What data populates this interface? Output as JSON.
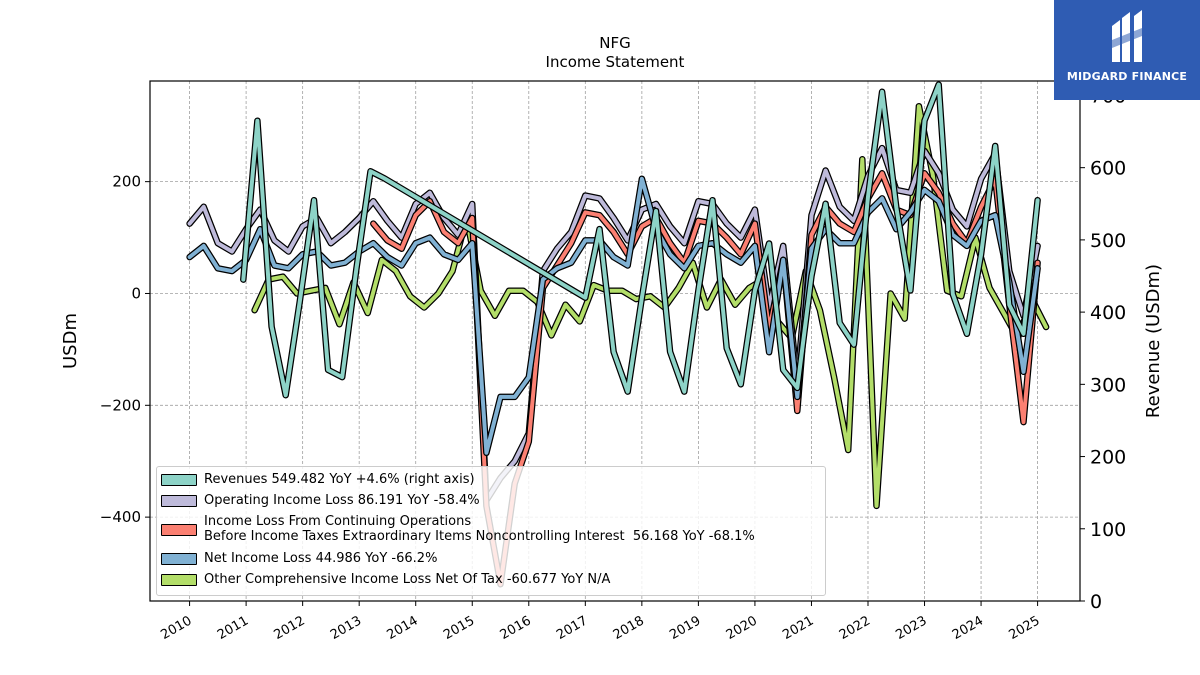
{
  "chart_data": {
    "type": "line",
    "title": "NFG",
    "subtitle": "Income Statement",
    "ylabel_left": "USDm",
    "ylabel_right": "Revenue (USDm)",
    "ylim_left": [
      -550,
      380
    ],
    "ylim_right": [
      0,
      720
    ],
    "yticks_left": [
      -400,
      -200,
      0,
      200
    ],
    "yticks_left_labels": [
      "−400",
      "−200",
      "0",
      "200"
    ],
    "yticks_right": [
      0,
      100,
      200,
      300,
      400,
      500,
      600,
      700
    ],
    "yticks_right_labels": [
      "0",
      "100",
      "200",
      "300",
      "400",
      "500",
      "600",
      "700"
    ],
    "xlim": [
      2009.3,
      2025.75
    ],
    "xticks": [
      "2010",
      "2011",
      "2012",
      "2013",
      "2014",
      "2015",
      "2016",
      "2017",
      "2018",
      "2019",
      "2020",
      "2021",
      "2022",
      "2023",
      "2024",
      "2025"
    ],
    "grid": true,
    "legend_position": "lower-left",
    "series": [
      {
        "name": "Revenues  549.482 YoY +4.6% (right axis)",
        "axis": "right",
        "color": "#8dd3c7",
        "points": [
          [
            2010.95,
            445
          ],
          [
            2011.2,
            665
          ],
          [
            2011.45,
            380
          ],
          [
            2011.7,
            285
          ],
          [
            2011.95,
            415
          ],
          [
            2012.2,
            555
          ],
          [
            2012.45,
            320
          ],
          [
            2012.7,
            310
          ],
          [
            2012.95,
            460
          ],
          [
            2013.2,
            595
          ],
          [
            2013.45,
            585
          ],
          [
            2017.0,
            420
          ],
          [
            2017.25,
            515
          ],
          [
            2017.5,
            345
          ],
          [
            2017.75,
            290
          ],
          [
            2018.0,
            420
          ],
          [
            2018.25,
            540
          ],
          [
            2018.5,
            345
          ],
          [
            2018.75,
            290
          ],
          [
            2019.0,
            430
          ],
          [
            2019.25,
            555
          ],
          [
            2019.5,
            350
          ],
          [
            2019.75,
            300
          ],
          [
            2020.0,
            430
          ],
          [
            2020.25,
            495
          ],
          [
            2020.5,
            320
          ],
          [
            2020.75,
            295
          ],
          [
            2021.0,
            450
          ],
          [
            2021.25,
            550
          ],
          [
            2021.5,
            385
          ],
          [
            2021.75,
            355
          ],
          [
            2022.0,
            560
          ],
          [
            2022.25,
            705
          ],
          [
            2022.5,
            545
          ],
          [
            2022.75,
            430
          ],
          [
            2023.0,
            665
          ],
          [
            2023.25,
            715
          ],
          [
            2023.5,
            425
          ],
          [
            2023.75,
            370
          ],
          [
            2024.0,
            480
          ],
          [
            2024.25,
            630
          ],
          [
            2024.5,
            410
          ],
          [
            2024.75,
            370
          ],
          [
            2025.0,
            555
          ]
        ]
      },
      {
        "name": "Operating Income Loss  86.191 YoY -58.4%",
        "axis": "left",
        "color": "#bebada",
        "points": [
          [
            2010.0,
            125
          ],
          [
            2010.25,
            155
          ],
          [
            2010.5,
            90
          ],
          [
            2010.75,
            75
          ],
          [
            2011.0,
            115
          ],
          [
            2011.25,
            150
          ],
          [
            2011.5,
            95
          ],
          [
            2011.75,
            75
          ],
          [
            2012.0,
            120
          ],
          [
            2012.25,
            135
          ],
          [
            2012.5,
            90
          ],
          [
            2012.75,
            110
          ],
          [
            2013.0,
            135
          ],
          [
            2013.25,
            165
          ],
          [
            2013.5,
            130
          ],
          [
            2013.75,
            100
          ],
          [
            2014.0,
            160
          ],
          [
            2014.25,
            180
          ],
          [
            2014.5,
            135
          ],
          [
            2014.75,
            105
          ],
          [
            2015.0,
            160
          ],
          [
            2015.25,
            -370
          ],
          [
            2015.5,
            -330
          ],
          [
            2015.75,
            -300
          ],
          [
            2016.0,
            -250
          ],
          [
            2016.25,
            40
          ],
          [
            2016.5,
            80
          ],
          [
            2016.75,
            110
          ],
          [
            2017.0,
            175
          ],
          [
            2017.25,
            170
          ],
          [
            2017.5,
            135
          ],
          [
            2017.75,
            95
          ],
          [
            2018.0,
            150
          ],
          [
            2018.25,
            160
          ],
          [
            2018.5,
            120
          ],
          [
            2018.75,
            90
          ],
          [
            2019.0,
            165
          ],
          [
            2019.25,
            160
          ],
          [
            2019.5,
            125
          ],
          [
            2019.75,
            100
          ],
          [
            2020.0,
            150
          ],
          [
            2020.25,
            -25
          ],
          [
            2020.5,
            85
          ],
          [
            2020.75,
            -160
          ],
          [
            2021.0,
            140
          ],
          [
            2021.25,
            220
          ],
          [
            2021.5,
            155
          ],
          [
            2021.75,
            130
          ],
          [
            2022.0,
            210
          ],
          [
            2022.25,
            260
          ],
          [
            2022.5,
            185
          ],
          [
            2022.75,
            180
          ],
          [
            2023.0,
            255
          ],
          [
            2023.25,
            215
          ],
          [
            2023.5,
            150
          ],
          [
            2023.75,
            120
          ],
          [
            2024.0,
            205
          ],
          [
            2024.25,
            250
          ],
          [
            2024.5,
            40
          ],
          [
            2024.75,
            -40
          ],
          [
            2025.0,
            85
          ]
        ]
      },
      {
        "name": "Income Loss From Continuing Operations\nBefore Income Taxes Extraordinary Items Noncontrolling Interest  56.168 YoY -68.1%",
        "axis": "left",
        "color": "#fb8072",
        "points": [
          [
            2013.25,
            125
          ],
          [
            2013.5,
            95
          ],
          [
            2013.75,
            80
          ],
          [
            2014.0,
            140
          ],
          [
            2014.25,
            165
          ],
          [
            2014.5,
            110
          ],
          [
            2014.75,
            90
          ],
          [
            2015.0,
            135
          ],
          [
            2015.25,
            -380
          ],
          [
            2015.5,
            -520
          ],
          [
            2015.75,
            -340
          ],
          [
            2016.0,
            -265
          ],
          [
            2016.25,
            10
          ],
          [
            2016.5,
            50
          ],
          [
            2016.75,
            90
          ],
          [
            2017.0,
            145
          ],
          [
            2017.25,
            140
          ],
          [
            2017.5,
            110
          ],
          [
            2017.75,
            70
          ],
          [
            2018.0,
            120
          ],
          [
            2018.25,
            135
          ],
          [
            2018.5,
            90
          ],
          [
            2018.75,
            55
          ],
          [
            2019.0,
            130
          ],
          [
            2019.25,
            125
          ],
          [
            2019.5,
            100
          ],
          [
            2019.75,
            70
          ],
          [
            2020.0,
            125
          ],
          [
            2020.25,
            -65
          ],
          [
            2020.5,
            60
          ],
          [
            2020.75,
            -210
          ],
          [
            2021.0,
            105
          ],
          [
            2021.25,
            155
          ],
          [
            2021.5,
            125
          ],
          [
            2021.75,
            110
          ],
          [
            2022.0,
            170
          ],
          [
            2022.25,
            215
          ],
          [
            2022.5,
            150
          ],
          [
            2022.75,
            140
          ],
          [
            2023.0,
            215
          ],
          [
            2023.25,
            180
          ],
          [
            2023.5,
            125
          ],
          [
            2023.75,
            90
          ],
          [
            2024.0,
            155
          ],
          [
            2024.25,
            205
          ],
          [
            2024.5,
            -20
          ],
          [
            2024.75,
            -230
          ],
          [
            2025.0,
            55
          ]
        ]
      },
      {
        "name": "Net Income Loss  44.986 YoY -66.2%",
        "axis": "left",
        "color": "#80b1d3",
        "points": [
          [
            2010.0,
            65
          ],
          [
            2010.25,
            85
          ],
          [
            2010.5,
            45
          ],
          [
            2010.75,
            40
          ],
          [
            2011.0,
            60
          ],
          [
            2011.25,
            115
          ],
          [
            2011.5,
            50
          ],
          [
            2011.75,
            45
          ],
          [
            2012.0,
            70
          ],
          [
            2012.25,
            75
          ],
          [
            2012.5,
            50
          ],
          [
            2012.75,
            55
          ],
          [
            2013.0,
            75
          ],
          [
            2013.25,
            90
          ],
          [
            2013.5,
            65
          ],
          [
            2013.75,
            50
          ],
          [
            2014.0,
            90
          ],
          [
            2014.25,
            100
          ],
          [
            2014.5,
            70
          ],
          [
            2014.75,
            60
          ],
          [
            2015.0,
            90
          ],
          [
            2015.25,
            -285
          ],
          [
            2015.5,
            -185
          ],
          [
            2015.75,
            -185
          ],
          [
            2016.0,
            -150
          ],
          [
            2016.25,
            25
          ],
          [
            2016.5,
            45
          ],
          [
            2016.75,
            55
          ],
          [
            2017.0,
            95
          ],
          [
            2017.25,
            95
          ],
          [
            2017.5,
            65
          ],
          [
            2017.75,
            50
          ],
          [
            2018.0,
            205
          ],
          [
            2018.25,
            115
          ],
          [
            2018.5,
            70
          ],
          [
            2018.75,
            45
          ],
          [
            2019.0,
            85
          ],
          [
            2019.25,
            90
          ],
          [
            2019.5,
            70
          ],
          [
            2019.75,
            55
          ],
          [
            2020.0,
            85
          ],
          [
            2020.25,
            -105
          ],
          [
            2020.5,
            60
          ],
          [
            2020.75,
            -185
          ],
          [
            2021.0,
            80
          ],
          [
            2021.25,
            115
          ],
          [
            2021.5,
            90
          ],
          [
            2021.75,
            90
          ],
          [
            2022.0,
            145
          ],
          [
            2022.25,
            170
          ],
          [
            2022.5,
            115
          ],
          [
            2022.75,
            145
          ],
          [
            2023.0,
            185
          ],
          [
            2023.25,
            165
          ],
          [
            2023.5,
            105
          ],
          [
            2023.75,
            85
          ],
          [
            2024.0,
            130
          ],
          [
            2024.25,
            140
          ],
          [
            2024.5,
            20
          ],
          [
            2024.75,
            -140
          ],
          [
            2025.0,
            45
          ]
        ]
      },
      {
        "name": "Other Comprehensive Income Loss Net Of Tax  -60.677 YoY N/A",
        "axis": "left",
        "color": "#b3de69",
        "points": [
          [
            2011.15,
            -30
          ],
          [
            2011.4,
            25
          ],
          [
            2011.65,
            30
          ],
          [
            2011.9,
            0
          ],
          [
            2012.15,
            5
          ],
          [
            2012.4,
            10
          ],
          [
            2012.65,
            -55
          ],
          [
            2012.9,
            20
          ],
          [
            2013.15,
            -35
          ],
          [
            2013.4,
            60
          ],
          [
            2013.65,
            40
          ],
          [
            2013.9,
            -5
          ],
          [
            2014.15,
            -25
          ],
          [
            2014.4,
            0
          ],
          [
            2014.65,
            40
          ],
          [
            2014.9,
            135
          ],
          [
            2015.15,
            5
          ],
          [
            2015.4,
            -40
          ],
          [
            2015.65,
            5
          ],
          [
            2015.9,
            5
          ],
          [
            2016.15,
            -15
          ],
          [
            2016.4,
            -75
          ],
          [
            2016.65,
            -20
          ],
          [
            2016.9,
            -50
          ],
          [
            2017.15,
            15
          ],
          [
            2017.4,
            5
          ],
          [
            2017.65,
            5
          ],
          [
            2017.9,
            -10
          ],
          [
            2018.15,
            -5
          ],
          [
            2018.4,
            -25
          ],
          [
            2018.65,
            10
          ],
          [
            2018.9,
            55
          ],
          [
            2019.15,
            -25
          ],
          [
            2019.4,
            25
          ],
          [
            2019.65,
            -20
          ],
          [
            2019.9,
            10
          ],
          [
            2020.15,
            25
          ],
          [
            2020.4,
            -50
          ],
          [
            2020.65,
            -80
          ],
          [
            2020.9,
            40
          ],
          [
            2021.15,
            -30
          ],
          [
            2021.4,
            -150
          ],
          [
            2021.65,
            -280
          ],
          [
            2021.9,
            240
          ],
          [
            2022.15,
            -380
          ],
          [
            2022.4,
            0
          ],
          [
            2022.65,
            -45
          ],
          [
            2022.9,
            335
          ],
          [
            2023.15,
            210
          ],
          [
            2023.4,
            5
          ],
          [
            2023.65,
            -5
          ],
          [
            2023.9,
            100
          ],
          [
            2024.15,
            10
          ],
          [
            2024.4,
            -35
          ],
          [
            2024.65,
            -80
          ],
          [
            2024.9,
            -10
          ],
          [
            2025.15,
            -60
          ]
        ]
      }
    ]
  },
  "logo": {
    "text": "MIDGARD FINANCE"
  }
}
